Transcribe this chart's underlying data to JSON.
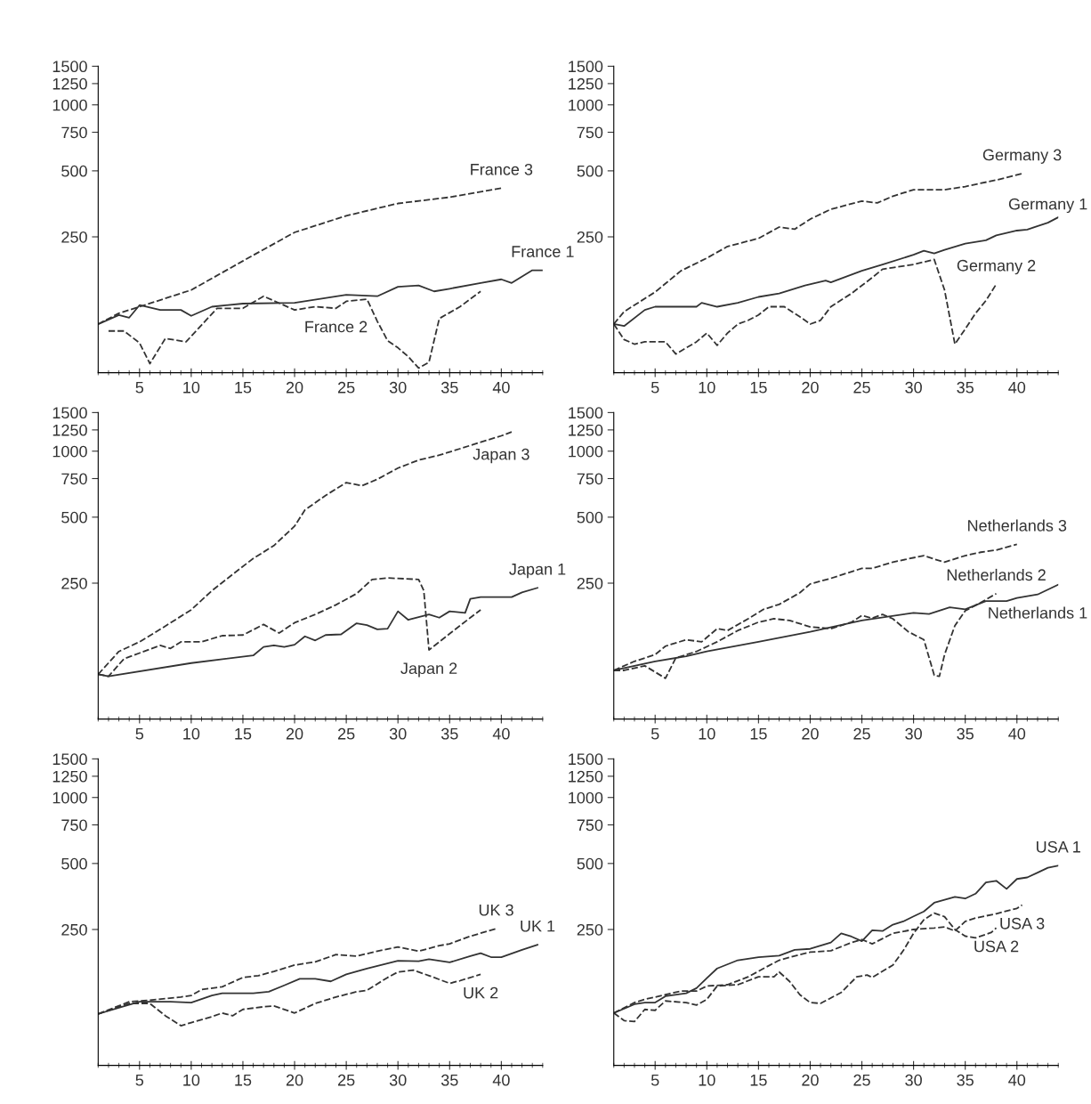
{
  "chart_data": [
    {
      "type": "line",
      "log": "y",
      "xlim": [
        1,
        44
      ],
      "ylim": [
        60,
        1500
      ],
      "yticks": [
        250,
        500,
        750,
        1000,
        1250,
        1500
      ],
      "xticks": [
        {
          "value": 1,
          "label": null
        },
        {
          "value": 2,
          "label": null
        },
        {
          "value": 3,
          "label": null
        },
        {
          "value": 4,
          "label": null
        },
        5,
        {
          "value": 6,
          "label": null
        },
        {
          "value": 7,
          "label": null
        },
        {
          "value": 8,
          "label": null
        },
        {
          "value": 9,
          "label": null
        },
        10,
        {
          "value": 11,
          "label": null
        },
        {
          "value": 12,
          "label": null
        },
        {
          "value": 13,
          "label": null
        },
        {
          "value": 14,
          "label": null
        },
        15,
        {
          "value": 16,
          "label": null
        },
        {
          "value": 17,
          "label": null
        },
        {
          "value": 18,
          "label": null
        },
        {
          "value": 19,
          "label": null
        },
        20,
        {
          "value": 21,
          "label": null
        },
        {
          "value": 22,
          "label": null
        },
        {
          "value": 23,
          "label": null
        },
        {
          "value": 24,
          "label": null
        },
        25,
        {
          "value": 26,
          "label": null
        },
        {
          "value": 27,
          "label": null
        },
        {
          "value": 28,
          "label": null
        },
        {
          "value": 29,
          "label": null
        },
        30,
        {
          "value": 31,
          "label": null
        },
        {
          "value": 32,
          "label": null
        },
        {
          "value": 33,
          "label": null
        },
        {
          "value": 34,
          "label": null
        },
        35,
        {
          "value": 36,
          "label": null
        },
        {
          "value": 37,
          "label": null
        },
        {
          "value": 38,
          "label": null
        },
        {
          "value": 39,
          "label": null
        },
        40,
        {
          "value": 41,
          "label": null
        },
        {
          "value": 42,
          "label": null
        },
        {
          "value": 43,
          "label": null
        },
        {
          "value": 44,
          "label": null
        }
      ],
      "series": [
        {
          "name": "France 1",
          "color": "#333333",
          "line_style": "solid",
          "x": [
            1,
            3,
            4,
            5,
            7,
            9,
            10,
            12,
            15,
            20,
            25,
            28,
            30,
            32,
            33.5,
            35,
            38,
            40,
            41,
            43,
            44
          ],
          "values": [
            100,
            110,
            107,
            122,
            116,
            116,
            109,
            120,
            124,
            125,
            136,
            134,
            148,
            150,
            141,
            145,
            154,
            160,
            154,
            176,
            176
          ]
        },
        {
          "name": "France 2",
          "color": "#333333",
          "line_style": "dashed",
          "x": [
            2,
            3.5,
            5,
            6,
            7.5,
            9.5,
            11,
            12.5,
            15,
            17,
            20,
            22,
            24,
            25,
            27,
            28,
            29,
            30,
            31,
            32,
            33,
            34,
            36,
            38
          ],
          "values": [
            93,
            93,
            82,
            66,
            86,
            83,
            99,
            118,
            118,
            134,
            116,
            120,
            118,
            127,
            130,
            103,
            84,
            78,
            71,
            63,
            67,
            106,
            120,
            141
          ]
        },
        {
          "name": "France 3",
          "color": "#333333",
          "line_style": "dashed",
          "x": [
            1,
            3,
            5,
            10,
            15,
            20,
            25,
            30,
            35,
            40
          ],
          "values": [
            100,
            112,
            120,
            143,
            194,
            262,
            312,
            355,
            379,
            417
          ]
        }
      ]
    },
    {
      "type": "line",
      "log": "y",
      "xlim": [
        1,
        44
      ],
      "ylim": [
        60,
        1500
      ],
      "yticks": [
        250,
        500,
        750,
        1000,
        1250,
        1500
      ],
      "xticks": [
        {
          "value": 1,
          "label": null
        },
        {
          "value": 2,
          "label": null
        },
        {
          "value": 3,
          "label": null
        },
        {
          "value": 4,
          "label": null
        },
        5,
        {
          "value": 6,
          "label": null
        },
        {
          "value": 7,
          "label": null
        },
        {
          "value": 8,
          "label": null
        },
        {
          "value": 9,
          "label": null
        },
        10,
        {
          "value": 11,
          "label": null
        },
        {
          "value": 12,
          "label": null
        },
        {
          "value": 13,
          "label": null
        },
        {
          "value": 14,
          "label": null
        },
        15,
        {
          "value": 16,
          "label": null
        },
        {
          "value": 17,
          "label": null
        },
        {
          "value": 18,
          "label": null
        },
        {
          "value": 19,
          "label": null
        },
        20,
        {
          "value": 21,
          "label": null
        },
        {
          "value": 22,
          "label": null
        },
        {
          "value": 23,
          "label": null
        },
        {
          "value": 24,
          "label": null
        },
        25,
        {
          "value": 26,
          "label": null
        },
        {
          "value": 27,
          "label": null
        },
        {
          "value": 28,
          "label": null
        },
        {
          "value": 29,
          "label": null
        },
        30,
        {
          "value": 31,
          "label": null
        },
        {
          "value": 32,
          "label": null
        },
        {
          "value": 33,
          "label": null
        },
        {
          "value": 34,
          "label": null
        },
        35,
        {
          "value": 36,
          "label": null
        },
        {
          "value": 37,
          "label": null
        },
        {
          "value": 38,
          "label": null
        },
        {
          "value": 39,
          "label": null
        },
        40,
        {
          "value": 41,
          "label": null
        },
        {
          "value": 42,
          "label": null
        },
        {
          "value": 43,
          "label": null
        },
        {
          "value": 44,
          "label": null
        }
      ],
      "series": [
        {
          "name": "Germany 1",
          "color": "#333333",
          "line_style": "solid",
          "x": [
            1,
            2,
            4,
            5,
            9,
            9.5,
            11,
            13,
            15,
            17,
            19.5,
            21.5,
            22,
            25,
            27,
            30,
            31,
            32,
            33,
            35,
            37,
            38,
            40,
            41,
            43,
            44
          ],
          "values": [
            100,
            98,
            116,
            120,
            120,
            125,
            120,
            125,
            133,
            138,
            150,
            158,
            155,
            175,
            187,
            207,
            216,
            210,
            218,
            233,
            241,
            254,
            267,
            270,
            290,
            307
          ]
        },
        {
          "name": "Germany 2",
          "color": "#333333",
          "line_style": "dashed",
          "x": [
            1,
            2,
            3,
            4,
            5,
            6,
            7,
            9,
            10,
            11,
            12,
            13,
            14,
            15,
            16,
            17.5,
            19,
            20,
            21,
            22,
            24,
            26,
            27,
            28,
            30,
            32,
            33,
            34,
            35,
            36,
            37,
            38
          ],
          "values": [
            100,
            85,
            81,
            83,
            83,
            83,
            73,
            83,
            91,
            80,
            91,
            100,
            104,
            110,
            120,
            120,
            108,
            100,
            104,
            120,
            138,
            163,
            178,
            181,
            187,
            197,
            143,
            81,
            95,
            112,
            128,
            152
          ]
        },
        {
          "name": "Germany 3",
          "color": "#333333",
          "line_style": "dashed",
          "x": [
            1,
            2,
            5,
            7.5,
            10,
            12,
            15,
            17,
            18.5,
            20,
            22,
            25,
            26.5,
            28,
            30,
            33,
            35,
            38,
            40.5
          ],
          "values": [
            100,
            114,
            140,
            175,
            200,
            226,
            246,
            277,
            271,
            301,
            334,
            364,
            357,
            383,
            410,
            410,
            424,
            454,
            486
          ]
        }
      ]
    },
    {
      "type": "line",
      "log": "y",
      "xlim": [
        1,
        44
      ],
      "ylim": [
        60,
        1500
      ],
      "yticks": [
        250,
        500,
        750,
        1000,
        1250,
        1500
      ],
      "xticks": [
        {
          "value": 1,
          "label": null
        },
        {
          "value": 2,
          "label": null
        },
        {
          "value": 3,
          "label": null
        },
        {
          "value": 4,
          "label": null
        },
        5,
        {
          "value": 6,
          "label": null
        },
        {
          "value": 7,
          "label": null
        },
        {
          "value": 8,
          "label": null
        },
        {
          "value": 9,
          "label": null
        },
        10,
        {
          "value": 11,
          "label": null
        },
        {
          "value": 12,
          "label": null
        },
        {
          "value": 13,
          "label": null
        },
        {
          "value": 14,
          "label": null
        },
        15,
        {
          "value": 16,
          "label": null
        },
        {
          "value": 17,
          "label": null
        },
        {
          "value": 18,
          "label": null
        },
        {
          "value": 19,
          "label": null
        },
        20,
        {
          "value": 21,
          "label": null
        },
        {
          "value": 22,
          "label": null
        },
        {
          "value": 23,
          "label": null
        },
        {
          "value": 24,
          "label": null
        },
        25,
        {
          "value": 26,
          "label": null
        },
        {
          "value": 27,
          "label": null
        },
        {
          "value": 28,
          "label": null
        },
        {
          "value": 29,
          "label": null
        },
        30,
        {
          "value": 31,
          "label": null
        },
        {
          "value": 32,
          "label": null
        },
        {
          "value": 33,
          "label": null
        },
        {
          "value": 34,
          "label": null
        },
        35,
        {
          "value": 36,
          "label": null
        },
        {
          "value": 37,
          "label": null
        },
        {
          "value": 38,
          "label": null
        },
        {
          "value": 39,
          "label": null
        },
        40,
        {
          "value": 41,
          "label": null
        },
        {
          "value": 42,
          "label": null
        },
        {
          "value": 43,
          "label": null
        },
        {
          "value": 44,
          "label": null
        }
      ],
      "series": [
        {
          "name": "Japan 1",
          "color": "#333333",
          "line_style": "solid",
          "x": [
            1,
            2,
            10,
            16,
            17,
            18,
            19,
            20,
            21,
            22,
            23,
            24.5,
            26,
            27,
            28,
            29,
            30,
            31,
            33,
            34,
            35,
            36.5,
            37,
            38,
            41,
            42,
            43.5
          ],
          "values": [
            96,
            94,
            108,
            117,
            128,
            130,
            128,
            131,
            143,
            137,
            145,
            146,
            164,
            161,
            154,
            155,
            186,
            170,
            180,
            174,
            186,
            183,
            212,
            216,
            216,
            227,
            238
          ]
        },
        {
          "name": "Japan 2",
          "color": "#333333",
          "line_style": "dashed",
          "x": [
            1,
            2,
            3.5,
            5,
            7,
            8,
            9,
            11,
            13,
            15,
            17,
            18.5,
            20,
            22,
            24,
            26,
            27.5,
            29,
            32,
            32.5,
            33,
            35,
            37,
            38
          ],
          "values": [
            96,
            94,
            113,
            120,
            130,
            126,
            135,
            135,
            144,
            145,
            162,
            148,
            165,
            180,
            199,
            224,
            260,
            264,
            260,
            231,
            124,
            147,
            174,
            189
          ]
        },
        {
          "name": "Japan 3",
          "color": "#333333",
          "line_style": "dashed",
          "x": [
            1,
            3,
            5,
            7,
            10,
            12,
            14,
            16,
            18,
            20,
            21,
            23,
            25,
            26.5,
            28,
            30,
            32,
            34,
            36,
            38,
            40,
            41
          ],
          "values": [
            96,
            122,
            135,
            154,
            189,
            231,
            274,
            324,
            371,
            455,
            539,
            628,
            719,
            695,
            744,
            837,
            911,
            959,
            1026,
            1099,
            1175,
            1224
          ]
        }
      ]
    },
    {
      "type": "line",
      "log": "y",
      "xlim": [
        1,
        44
      ],
      "ylim": [
        60,
        1500
      ],
      "yticks": [
        250,
        500,
        750,
        1000,
        1250,
        1500
      ],
      "xticks": [
        {
          "value": 1,
          "label": null
        },
        {
          "value": 2,
          "label": null
        },
        {
          "value": 3,
          "label": null
        },
        {
          "value": 4,
          "label": null
        },
        5,
        {
          "value": 6,
          "label": null
        },
        {
          "value": 7,
          "label": null
        },
        {
          "value": 8,
          "label": null
        },
        {
          "value": 9,
          "label": null
        },
        10,
        {
          "value": 11,
          "label": null
        },
        {
          "value": 12,
          "label": null
        },
        {
          "value": 13,
          "label": null
        },
        {
          "value": 14,
          "label": null
        },
        15,
        {
          "value": 16,
          "label": null
        },
        {
          "value": 17,
          "label": null
        },
        {
          "value": 18,
          "label": null
        },
        {
          "value": 19,
          "label": null
        },
        20,
        {
          "value": 21,
          "label": null
        },
        {
          "value": 22,
          "label": null
        },
        {
          "value": 23,
          "label": null
        },
        {
          "value": 24,
          "label": null
        },
        25,
        {
          "value": 26,
          "label": null
        },
        {
          "value": 27,
          "label": null
        },
        {
          "value": 28,
          "label": null
        },
        {
          "value": 29,
          "label": null
        },
        30,
        {
          "value": 31,
          "label": null
        },
        {
          "value": 32,
          "label": null
        },
        {
          "value": 33,
          "label": null
        },
        {
          "value": 34,
          "label": null
        },
        35,
        {
          "value": 36,
          "label": null
        },
        {
          "value": 37,
          "label": null
        },
        {
          "value": 38,
          "label": null
        },
        {
          "value": 39,
          "label": null
        },
        40,
        {
          "value": 41,
          "label": null
        },
        {
          "value": 42,
          "label": null
        },
        {
          "value": 43,
          "label": null
        },
        {
          "value": 44,
          "label": null
        }
      ],
      "series": [
        {
          "name": "Netherlands 1",
          "color": "#333333",
          "line_style": "solid",
          "x": [
            1,
            5,
            8,
            10,
            15,
            20,
            25,
            30,
            31.5,
            33.5,
            35,
            37,
            39,
            40,
            42,
            44
          ],
          "values": [
            100,
            110,
            116,
            122,
            135,
            150,
            169,
            183,
            181,
            194,
            190,
            207,
            207,
            214,
            222,
            246
          ]
        },
        {
          "name": "Netherlands 2",
          "color": "#333333",
          "line_style": "dashed",
          "x": [
            1,
            2,
            4,
            6,
            7,
            9,
            11,
            13,
            15,
            16.5,
            18,
            20,
            22,
            24,
            25,
            26,
            27,
            28,
            29.5,
            31,
            32,
            32.5,
            33,
            34,
            35,
            36.5,
            38
          ],
          "values": [
            100,
            100,
            105,
            92,
            114,
            122,
            135,
            152,
            166,
            172,
            169,
            158,
            155,
            166,
            178,
            173,
            180,
            172,
            150,
            138,
            95,
            94,
            118,
            160,
            187,
            204,
            224
          ]
        },
        {
          "name": "Netherlands 3",
          "color": "#333333",
          "line_style": "dashed",
          "x": [
            1,
            3,
            5,
            6,
            8,
            9.5,
            11,
            12,
            14,
            15.5,
            17,
            19,
            20,
            22,
            25,
            26,
            28,
            31,
            32,
            33,
            35,
            36.5,
            38,
            40
          ],
          "values": [
            100,
            110,
            118,
            129,
            138,
            135,
            155,
            152,
            172,
            190,
            200,
            226,
            248,
            263,
            292,
            292,
            312,
            334,
            322,
            312,
            334,
            346,
            354,
            376
          ]
        }
      ]
    },
    {
      "type": "line",
      "log": "y",
      "xlim": [
        1,
        44
      ],
      "ylim": [
        60,
        1500
      ],
      "yticks": [
        250,
        500,
        750,
        1000,
        1250,
        1500
      ],
      "xticks": [
        {
          "value": 1,
          "label": null
        },
        {
          "value": 2,
          "label": null
        },
        {
          "value": 3,
          "label": null
        },
        {
          "value": 4,
          "label": null
        },
        5,
        {
          "value": 6,
          "label": null
        },
        {
          "value": 7,
          "label": null
        },
        {
          "value": 8,
          "label": null
        },
        {
          "value": 9,
          "label": null
        },
        10,
        {
          "value": 11,
          "label": null
        },
        {
          "value": 12,
          "label": null
        },
        {
          "value": 13,
          "label": null
        },
        {
          "value": 14,
          "label": null
        },
        15,
        {
          "value": 16,
          "label": null
        },
        {
          "value": 17,
          "label": null
        },
        {
          "value": 18,
          "label": null
        },
        {
          "value": 19,
          "label": null
        },
        20,
        {
          "value": 21,
          "label": null
        },
        {
          "value": 22,
          "label": null
        },
        {
          "value": 23,
          "label": null
        },
        {
          "value": 24,
          "label": null
        },
        25,
        {
          "value": 26,
          "label": null
        },
        {
          "value": 27,
          "label": null
        },
        {
          "value": 28,
          "label": null
        },
        {
          "value": 29,
          "label": null
        },
        30,
        {
          "value": 31,
          "label": null
        },
        {
          "value": 32,
          "label": null
        },
        {
          "value": 33,
          "label": null
        },
        {
          "value": 34,
          "label": null
        },
        35,
        {
          "value": 36,
          "label": null
        },
        {
          "value": 37,
          "label": null
        },
        {
          "value": 38,
          "label": null
        },
        {
          "value": 39,
          "label": null
        },
        40,
        {
          "value": 41,
          "label": null
        },
        {
          "value": 42,
          "label": null
        },
        {
          "value": 43,
          "label": null
        },
        {
          "value": 44,
          "label": null
        }
      ],
      "series": [
        {
          "name": "UK 1",
          "color": "#333333",
          "line_style": "solid",
          "x": [
            1,
            3,
            5,
            8,
            10,
            12,
            13,
            16,
            17.5,
            19,
            20.5,
            22,
            23.5,
            25,
            27,
            30,
            32,
            33,
            35,
            37,
            38,
            39,
            40,
            42,
            43.5
          ],
          "values": [
            103,
            110,
            117,
            117,
            116,
            125,
            128,
            128,
            130,
            139,
            149,
            149,
            145,
            156,
            166,
            180,
            179,
            183,
            177,
            189,
            195,
            187,
            187,
            202,
            213
          ]
        },
        {
          "name": "UK 2",
          "color": "#333333",
          "line_style": "dashed",
          "x": [
            1,
            4,
            6,
            7.5,
            9,
            10,
            12,
            13,
            14,
            15,
            17,
            18,
            20,
            22,
            24,
            26,
            27,
            29,
            30,
            31.5,
            33,
            35,
            36,
            38
          ],
          "values": [
            103,
            115,
            115,
            101,
            91,
            94,
            100,
            104,
            101,
            108,
            111,
            112,
            104,
            115,
            123,
            130,
            132,
            151,
            160,
            163,
            154,
            142,
            146,
            156
          ]
        },
        {
          "name": "UK 3",
          "color": "#333333",
          "line_style": "dashed",
          "x": [
            1,
            4,
            6,
            9,
            10,
            11,
            13,
            15,
            16.5,
            18,
            20,
            22,
            24,
            26,
            28,
            30,
            32,
            34,
            35,
            37,
            39.5
          ],
          "values": [
            103,
            117,
            119,
            123,
            125,
            133,
            137,
            151,
            154,
            161,
            172,
            178,
            192,
            189,
            199,
            208,
            199,
            211,
            215,
            233,
            252
          ]
        }
      ]
    },
    {
      "type": "line",
      "log": "y",
      "xlim": [
        1,
        44
      ],
      "ylim": [
        60,
        1500
      ],
      "yticks": [
        250,
        500,
        750,
        1000,
        1250,
        1500
      ],
      "xticks": [
        {
          "value": 1,
          "label": null
        },
        {
          "value": 2,
          "label": null
        },
        {
          "value": 3,
          "label": null
        },
        {
          "value": 4,
          "label": null
        },
        5,
        {
          "value": 6,
          "label": null
        },
        {
          "value": 7,
          "label": null
        },
        {
          "value": 8,
          "label": null
        },
        {
          "value": 9,
          "label": null
        },
        10,
        {
          "value": 11,
          "label": null
        },
        {
          "value": 12,
          "label": null
        },
        {
          "value": 13,
          "label": null
        },
        {
          "value": 14,
          "label": null
        },
        15,
        {
          "value": 16,
          "label": null
        },
        {
          "value": 17,
          "label": null
        },
        {
          "value": 18,
          "label": null
        },
        {
          "value": 19,
          "label": null
        },
        20,
        {
          "value": 21,
          "label": null
        },
        {
          "value": 22,
          "label": null
        },
        {
          "value": 23,
          "label": null
        },
        {
          "value": 24,
          "label": null
        },
        25,
        {
          "value": 26,
          "label": null
        },
        {
          "value": 27,
          "label": null
        },
        {
          "value": 28,
          "label": null
        },
        {
          "value": 29,
          "label": null
        },
        30,
        {
          "value": 31,
          "label": null
        },
        {
          "value": 32,
          "label": null
        },
        {
          "value": 33,
          "label": null
        },
        {
          "value": 34,
          "label": null
        },
        35,
        {
          "value": 36,
          "label": null
        },
        {
          "value": 37,
          "label": null
        },
        {
          "value": 38,
          "label": null
        },
        {
          "value": 39,
          "label": null
        },
        40,
        {
          "value": 41,
          "label": null
        },
        {
          "value": 42,
          "label": null
        },
        {
          "value": 43,
          "label": null
        },
        {
          "value": 44,
          "label": null
        }
      ],
      "series": [
        {
          "name": "USA 1",
          "color": "#333333",
          "line_style": "solid",
          "x": [
            1,
            3,
            4,
            5,
            6,
            8,
            9,
            10,
            11,
            13,
            15,
            17,
            18.5,
            20,
            21,
            22,
            23,
            24,
            25,
            26,
            27,
            28,
            29,
            30,
            31,
            32,
            34,
            35,
            36,
            37,
            38,
            39,
            40,
            41,
            42,
            43,
            44
          ],
          "values": [
            104,
            114,
            116,
            116,
            124,
            128,
            135,
            150,
            166,
            181,
            187,
            190,
            202,
            204,
            211,
            218,
            240,
            232,
            221,
            248,
            246,
            263,
            272,
            287,
            302,
            331,
            352,
            346,
            364,
            410,
            417,
            383,
            425,
            432,
            454,
            478,
            489
          ]
        },
        {
          "name": "USA 2",
          "color": "#333333",
          "line_style": "dashed",
          "x": [
            1,
            2,
            3,
            4,
            5,
            6,
            8,
            9,
            10,
            11,
            13,
            15,
            16.5,
            17,
            18,
            19,
            20,
            21,
            23,
            24.5,
            25.5,
            26,
            28,
            29,
            30,
            31,
            32,
            33,
            34,
            35,
            36,
            37.5,
            38
          ],
          "values": [
            104,
            96,
            95,
            108,
            107,
            118,
            116,
            113,
            120,
            138,
            140,
            152,
            152,
            160,
            145,
            126,
            116,
            115,
            129,
            152,
            155,
            151,
            172,
            200,
            240,
            277,
            297,
            286,
            250,
            233,
            229,
            242,
            254
          ]
        },
        {
          "name": "USA 3",
          "color": "#333333",
          "line_style": "dashed",
          "x": [
            1,
            3,
            4,
            6,
            7.5,
            9,
            10,
            12,
            14,
            16,
            17,
            19,
            20,
            22,
            24,
            25,
            26,
            28,
            30,
            32,
            33,
            34,
            35,
            36,
            38,
            40,
            40.5
          ],
          "values": [
            104,
            116,
            120,
            126,
            131,
            131,
            138,
            140,
            152,
            171,
            181,
            192,
            197,
            200,
            218,
            225,
            215,
            240,
            250,
            254,
            257,
            246,
            272,
            282,
            295,
            312,
            323
          ]
        }
      ]
    }
  ]
}
